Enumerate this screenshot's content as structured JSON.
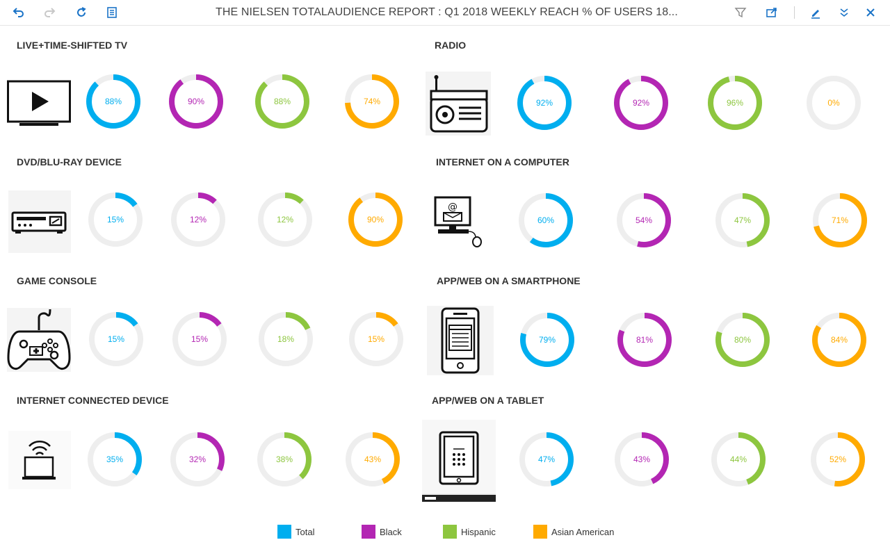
{
  "toolbar": {
    "title": "THE NIELSEN TOTALAUDIENCE REPORT : Q1 2018 WEEKLY REACH % OF USERS 18...",
    "buttons": [
      "undo-icon",
      "redo-icon",
      "refresh-icon",
      "list-icon",
      "filter-icon",
      "share-icon",
      "edit-icon",
      "collapse-icon",
      "close-icon"
    ]
  },
  "colors": {
    "Total": "#00AEEF",
    "Black": "#B326B3",
    "Hispanic": "#8DC63F",
    "Asian American": "#FFAA00",
    "track": "#EEEEEE"
  },
  "sections": [
    {
      "title": "LIVE+TIME-SHIFTED TV",
      "icon": "tv-icon",
      "values": [
        "88%",
        "90%",
        "88%",
        "74%"
      ]
    },
    {
      "title": "RADIO",
      "icon": "radio-icon",
      "values": [
        "92%",
        "92%",
        "96%",
        "0%"
      ]
    },
    {
      "title": "DVD/BLU-RAY DEVICE",
      "icon": "dvd-player-icon",
      "values": [
        "15%",
        "12%",
        "12%",
        "90%"
      ]
    },
    {
      "title": "INTERNET ON A COMPUTER",
      "icon": "computer-icon",
      "values": [
        "60%",
        "54%",
        "47%",
        "71%"
      ]
    },
    {
      "title": "GAME CONSOLE",
      "icon": "gamepad-icon",
      "values": [
        "15%",
        "15%",
        "18%",
        "15%"
      ]
    },
    {
      "title": "APP/WEB ON A SMARTPHONE",
      "icon": "smartphone-icon",
      "values": [
        "79%",
        "81%",
        "80%",
        "84%"
      ]
    },
    {
      "title": "INTERNET CONNECTED DEVICE",
      "icon": "connected-device-icon",
      "values": [
        "35%",
        "32%",
        "38%",
        "43%"
      ]
    },
    {
      "title": "APP/WEB ON A TABLET",
      "icon": "tablet-icon",
      "values": [
        "47%",
        "43%",
        "44%",
        "52%"
      ]
    }
  ],
  "legend": [
    {
      "label": "Total"
    },
    {
      "label": "Black"
    },
    {
      "label": "Hispanic"
    },
    {
      "label": "Asian American"
    }
  ]
}
